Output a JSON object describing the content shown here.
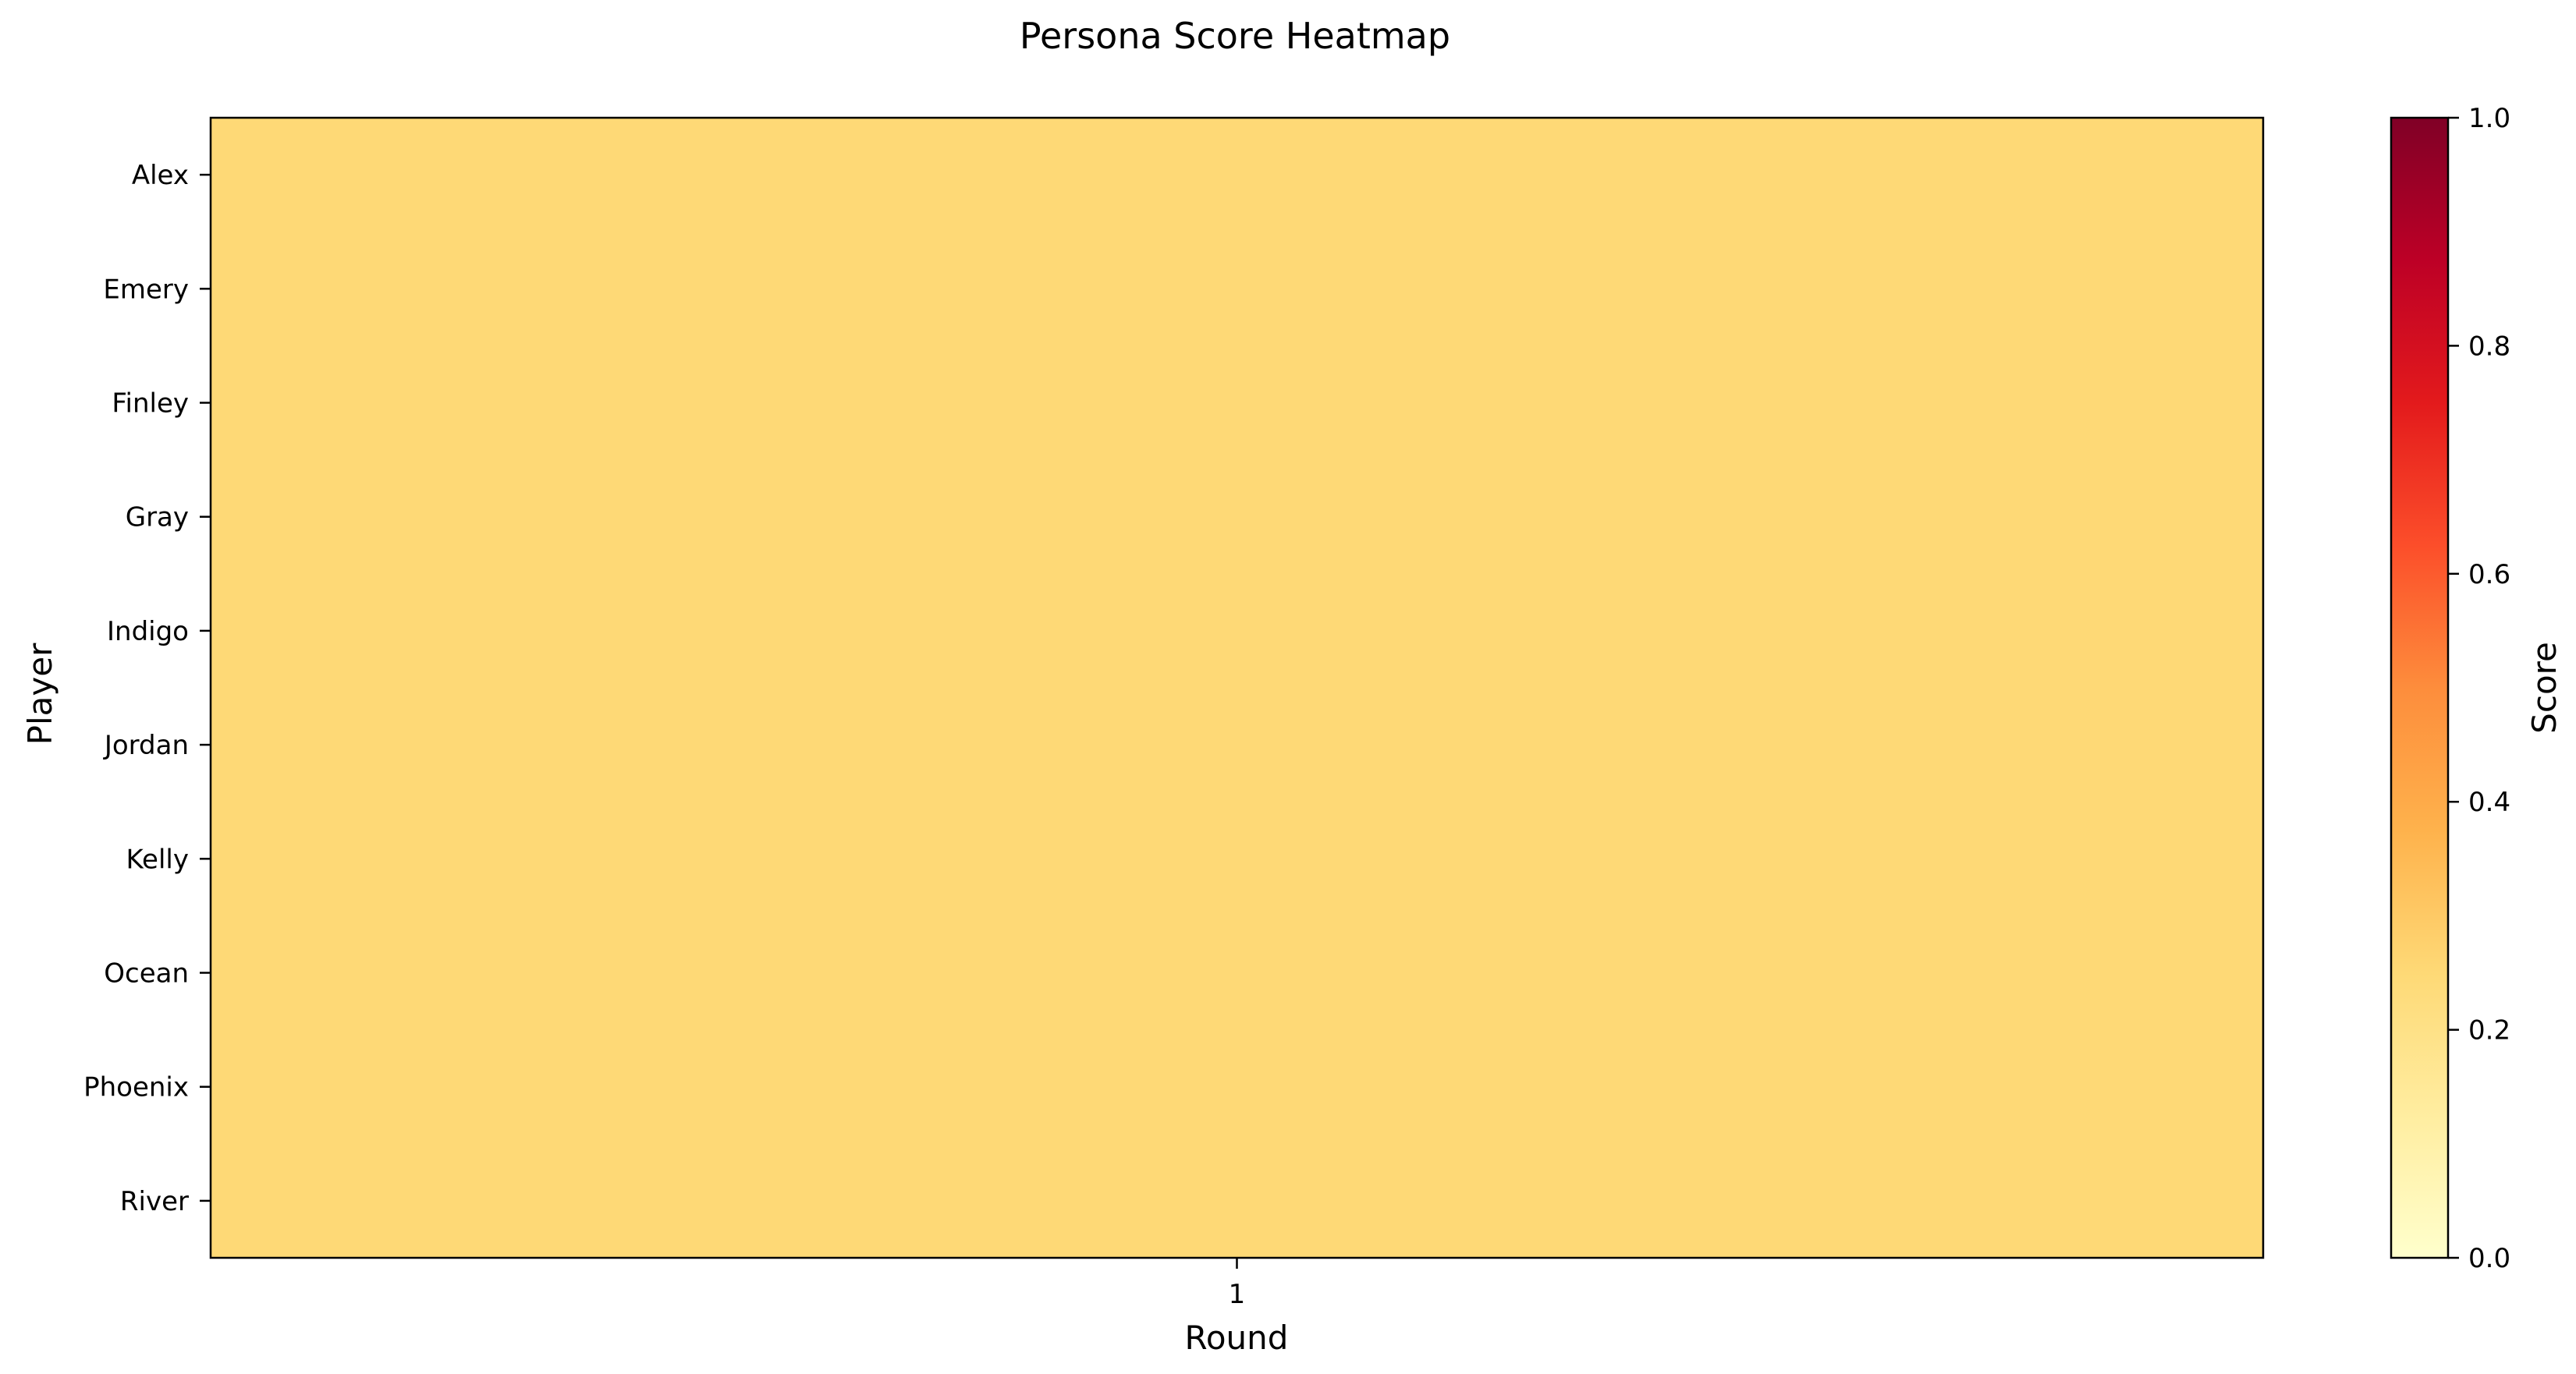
{
  "chart_data": {
    "type": "heatmap",
    "title": "Persona Score Heatmap",
    "xlabel": "Round",
    "ylabel": "Player",
    "x": [
      "1"
    ],
    "y": [
      "Alex",
      "Emery",
      "Finley",
      "Gray",
      "Indigo",
      "Jordan",
      "Kelly",
      "Ocean",
      "Phoenix",
      "River"
    ],
    "values": [
      [
        0.25
      ],
      [
        0.25
      ],
      [
        0.25
      ],
      [
        0.25
      ],
      [
        0.25
      ],
      [
        0.25
      ],
      [
        0.25
      ],
      [
        0.25
      ],
      [
        0.25
      ],
      [
        0.25
      ]
    ],
    "colorbar": {
      "label": "Score",
      "range": [
        0,
        1
      ],
      "ticks": [
        "0.0",
        "0.2",
        "0.4",
        "0.6",
        "0.8",
        "1.0"
      ],
      "colormap": "YlOrRd",
      "colors": [
        "#ffffcc",
        "#ffeda0",
        "#fed976",
        "#feb24c",
        "#fd8d3c",
        "#fc4e2a",
        "#e31a1c",
        "#bd0026",
        "#800026"
      ]
    }
  }
}
